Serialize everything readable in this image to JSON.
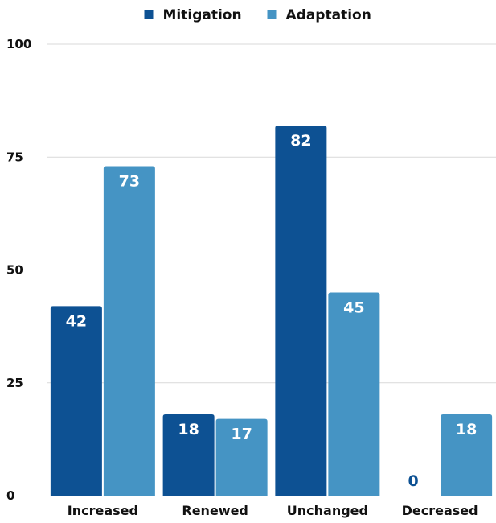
{
  "chart_data": {
    "type": "bar",
    "categories": [
      "Increased",
      "Renewed",
      "Unchanged",
      "Decreased"
    ],
    "series": [
      {
        "name": "Mitigation",
        "values": [
          42,
          18,
          82,
          0
        ],
        "color": "#0d5193"
      },
      {
        "name": "Adaptation",
        "values": [
          73,
          17,
          45,
          18
        ],
        "color": "#4594c4"
      }
    ],
    "ylim": [
      0,
      100
    ],
    "yticks": [
      0,
      25,
      50,
      75,
      100
    ],
    "grid": true,
    "legend": "top-center",
    "data_labels": true,
    "label_colors": {
      "inside": "#ffffff",
      "outside": "#0d5193"
    }
  }
}
